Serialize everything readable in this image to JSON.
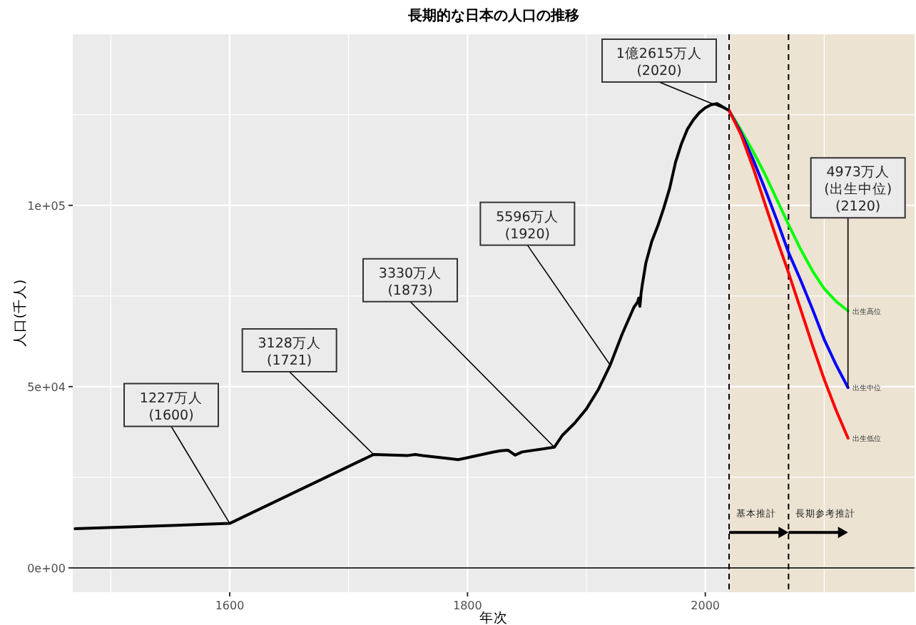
{
  "chart_data": {
    "type": "line",
    "title": "長期的な日本の人口の推移",
    "xlabel": "年次",
    "ylabel": "人口(千人)",
    "xlim": [
      1468,
      2176
    ],
    "ylim": [
      -6700,
      147200
    ],
    "xticks": [
      1600,
      1800,
      2000
    ],
    "yticks": [
      {
        "value": 0,
        "label": "0e+00"
      },
      {
        "value": 50000,
        "label": "5e+04"
      },
      {
        "value": 100000,
        "label": "1e+05"
      }
    ],
    "grid": true,
    "legend": false,
    "line_style": "solid",
    "marker": "none",
    "series": [
      {
        "color": "#000000",
        "x": [
          1470,
          1600,
          1721,
          1750,
          1756,
          1762,
          1786,
          1792,
          1798,
          1804,
          1822,
          1828,
          1834,
          1840,
          1846,
          1873,
          1880,
          1890,
          1900,
          1910,
          1920,
          1930,
          1940,
          1943,
          1944,
          1945,
          1946,
          1947,
          1950,
          1955,
          1960,
          1965,
          1970,
          1975,
          1980,
          1985,
          1990,
          1995,
          2000,
          2005,
          2010,
          2015,
          2020
        ],
        "values": [
          10800,
          12270,
          31280,
          31010,
          31280,
          31000,
          30100,
          29870,
          30250,
          30690,
          31960,
          32300,
          32470,
          31100,
          32000,
          33300,
          36650,
          39900,
          43850,
          49180,
          55960,
          64450,
          71930,
          73300,
          74400,
          72150,
          75750,
          78100,
          84110,
          90080,
          94300,
          99210,
          104670,
          111940,
          117060,
          121050,
          123610,
          125570,
          126930,
          127770,
          128060,
          127090,
          126150
        ]
      },
      {
        "name": "出生高位",
        "color": "#00ff00",
        "x": [
          2020,
          2030,
          2040,
          2050,
          2060,
          2070,
          2080,
          2090,
          2100,
          2110,
          2120
        ],
        "values": [
          126150,
          120800,
          115000,
          108700,
          101700,
          94700,
          88000,
          82000,
          77000,
          73500,
          70900
        ]
      },
      {
        "name": "出生中位",
        "color": "#0000ff",
        "x": [
          2020,
          2030,
          2040,
          2050,
          2060,
          2070,
          2080,
          2090,
          2100,
          2110,
          2120
        ],
        "values": [
          126150,
          120100,
          112800,
          104700,
          96100,
          87000,
          79500,
          71500,
          63000,
          56000,
          49730
        ]
      },
      {
        "name": "出生低位",
        "color": "#ff0000",
        "x": [
          2020,
          2030,
          2040,
          2050,
          2060,
          2070,
          2080,
          2090,
          2100,
          2110,
          2120
        ],
        "values": [
          126150,
          119500,
          110600,
          100600,
          90800,
          81400,
          71500,
          61500,
          52000,
          43500,
          35800
        ]
      }
    ],
    "ref_lines": [
      {
        "axis": "y",
        "value": 0,
        "color": "#333333",
        "line_style": "solid"
      },
      {
        "axis": "x",
        "value": 2020,
        "color": "#000000",
        "line_style": "dashed"
      },
      {
        "axis": "x",
        "value": 2070,
        "color": "#000000",
        "line_style": "dashed"
      }
    ],
    "bands": [
      {
        "axis": "x",
        "from": 2020,
        "to": 2176,
        "color": "#ede3d3"
      }
    ],
    "annotations": [
      {
        "text": "1227万人\n(1600)",
        "x": 1600,
        "y": 12270
      },
      {
        "text": "3128万人\n(1721)",
        "x": 1721,
        "y": 31280
      },
      {
        "text": "3330万人\n(1873)",
        "x": 1873,
        "y": 33300
      },
      {
        "text": "5596万人\n(1920)",
        "x": 1920,
        "y": 55960
      },
      {
        "text": "1億2615万人\n(2020)",
        "x": 2020,
        "y": 126150
      },
      {
        "text": "4973万人\n(出生中位)\n(2120)",
        "x": 2120,
        "y": 49730
      },
      {
        "text": "基本推計",
        "x": 2020,
        "y": 9800
      },
      {
        "text": "長期参考推計",
        "x": 2070,
        "y": 9800
      }
    ]
  }
}
